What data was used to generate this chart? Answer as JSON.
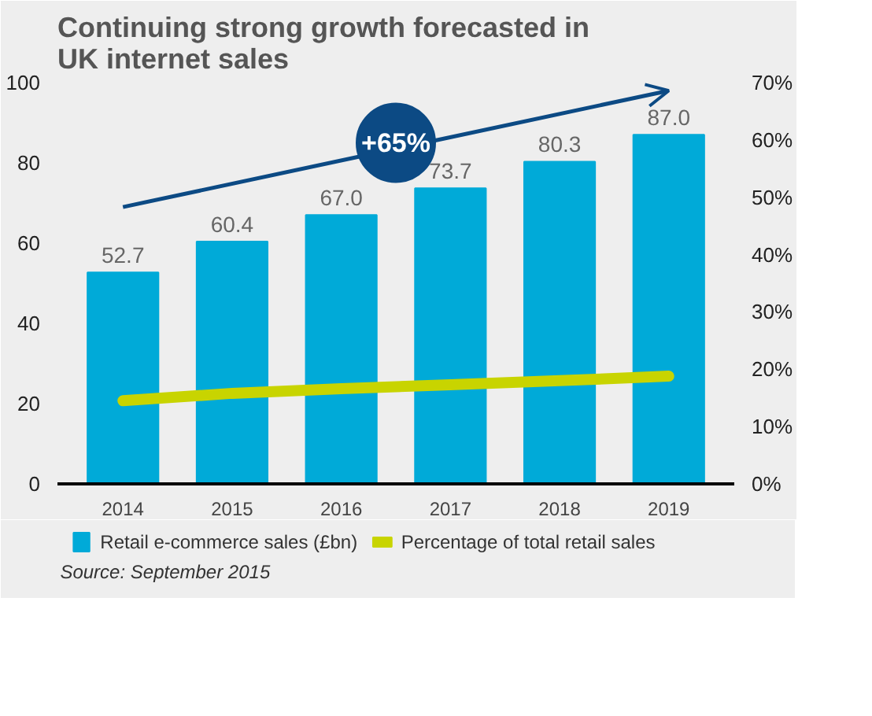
{
  "chart_data": {
    "type": "bar",
    "title": "Continuing strong growth forecasted in\nUK internet sales",
    "categories": [
      "2014",
      "2015",
      "2016",
      "2017",
      "2018",
      "2019"
    ],
    "series": [
      {
        "name": "Retail e-commerce sales (£bn)",
        "color": "#00aad8",
        "values": [
          52.7,
          60.4,
          67.0,
          73.7,
          80.3,
          87.0
        ],
        "value_labels": [
          "52.7",
          "60.4",
          "67.0",
          "73.7",
          "80.3",
          "87.0"
        ]
      },
      {
        "name": "Percentage of total retail sales",
        "type": "line",
        "axis": "y2",
        "color": "#c8d400",
        "values": [
          14.5,
          15.8,
          16.6,
          17.3,
          18.0,
          18.8
        ]
      }
    ],
    "ylim": [
      0,
      100
    ],
    "yticks": [
      0,
      20,
      40,
      60,
      80,
      100
    ],
    "y2lim": [
      0,
      70
    ],
    "y2ticks": [
      {
        "value": 0,
        "label": "0%"
      },
      {
        "value": 10,
        "label": "10%"
      },
      {
        "value": 20,
        "label": "20%"
      },
      {
        "value": 30,
        "label": "30%"
      },
      {
        "value": 40,
        "label": "40%"
      },
      {
        "value": 50,
        "label": "50%"
      },
      {
        "value": 60,
        "label": "60%"
      },
      {
        "value": 70,
        "label": "70%"
      }
    ],
    "grid": false,
    "legend": "bottom",
    "annotations": [
      "+65%",
      "Source: September 2015"
    ]
  }
}
